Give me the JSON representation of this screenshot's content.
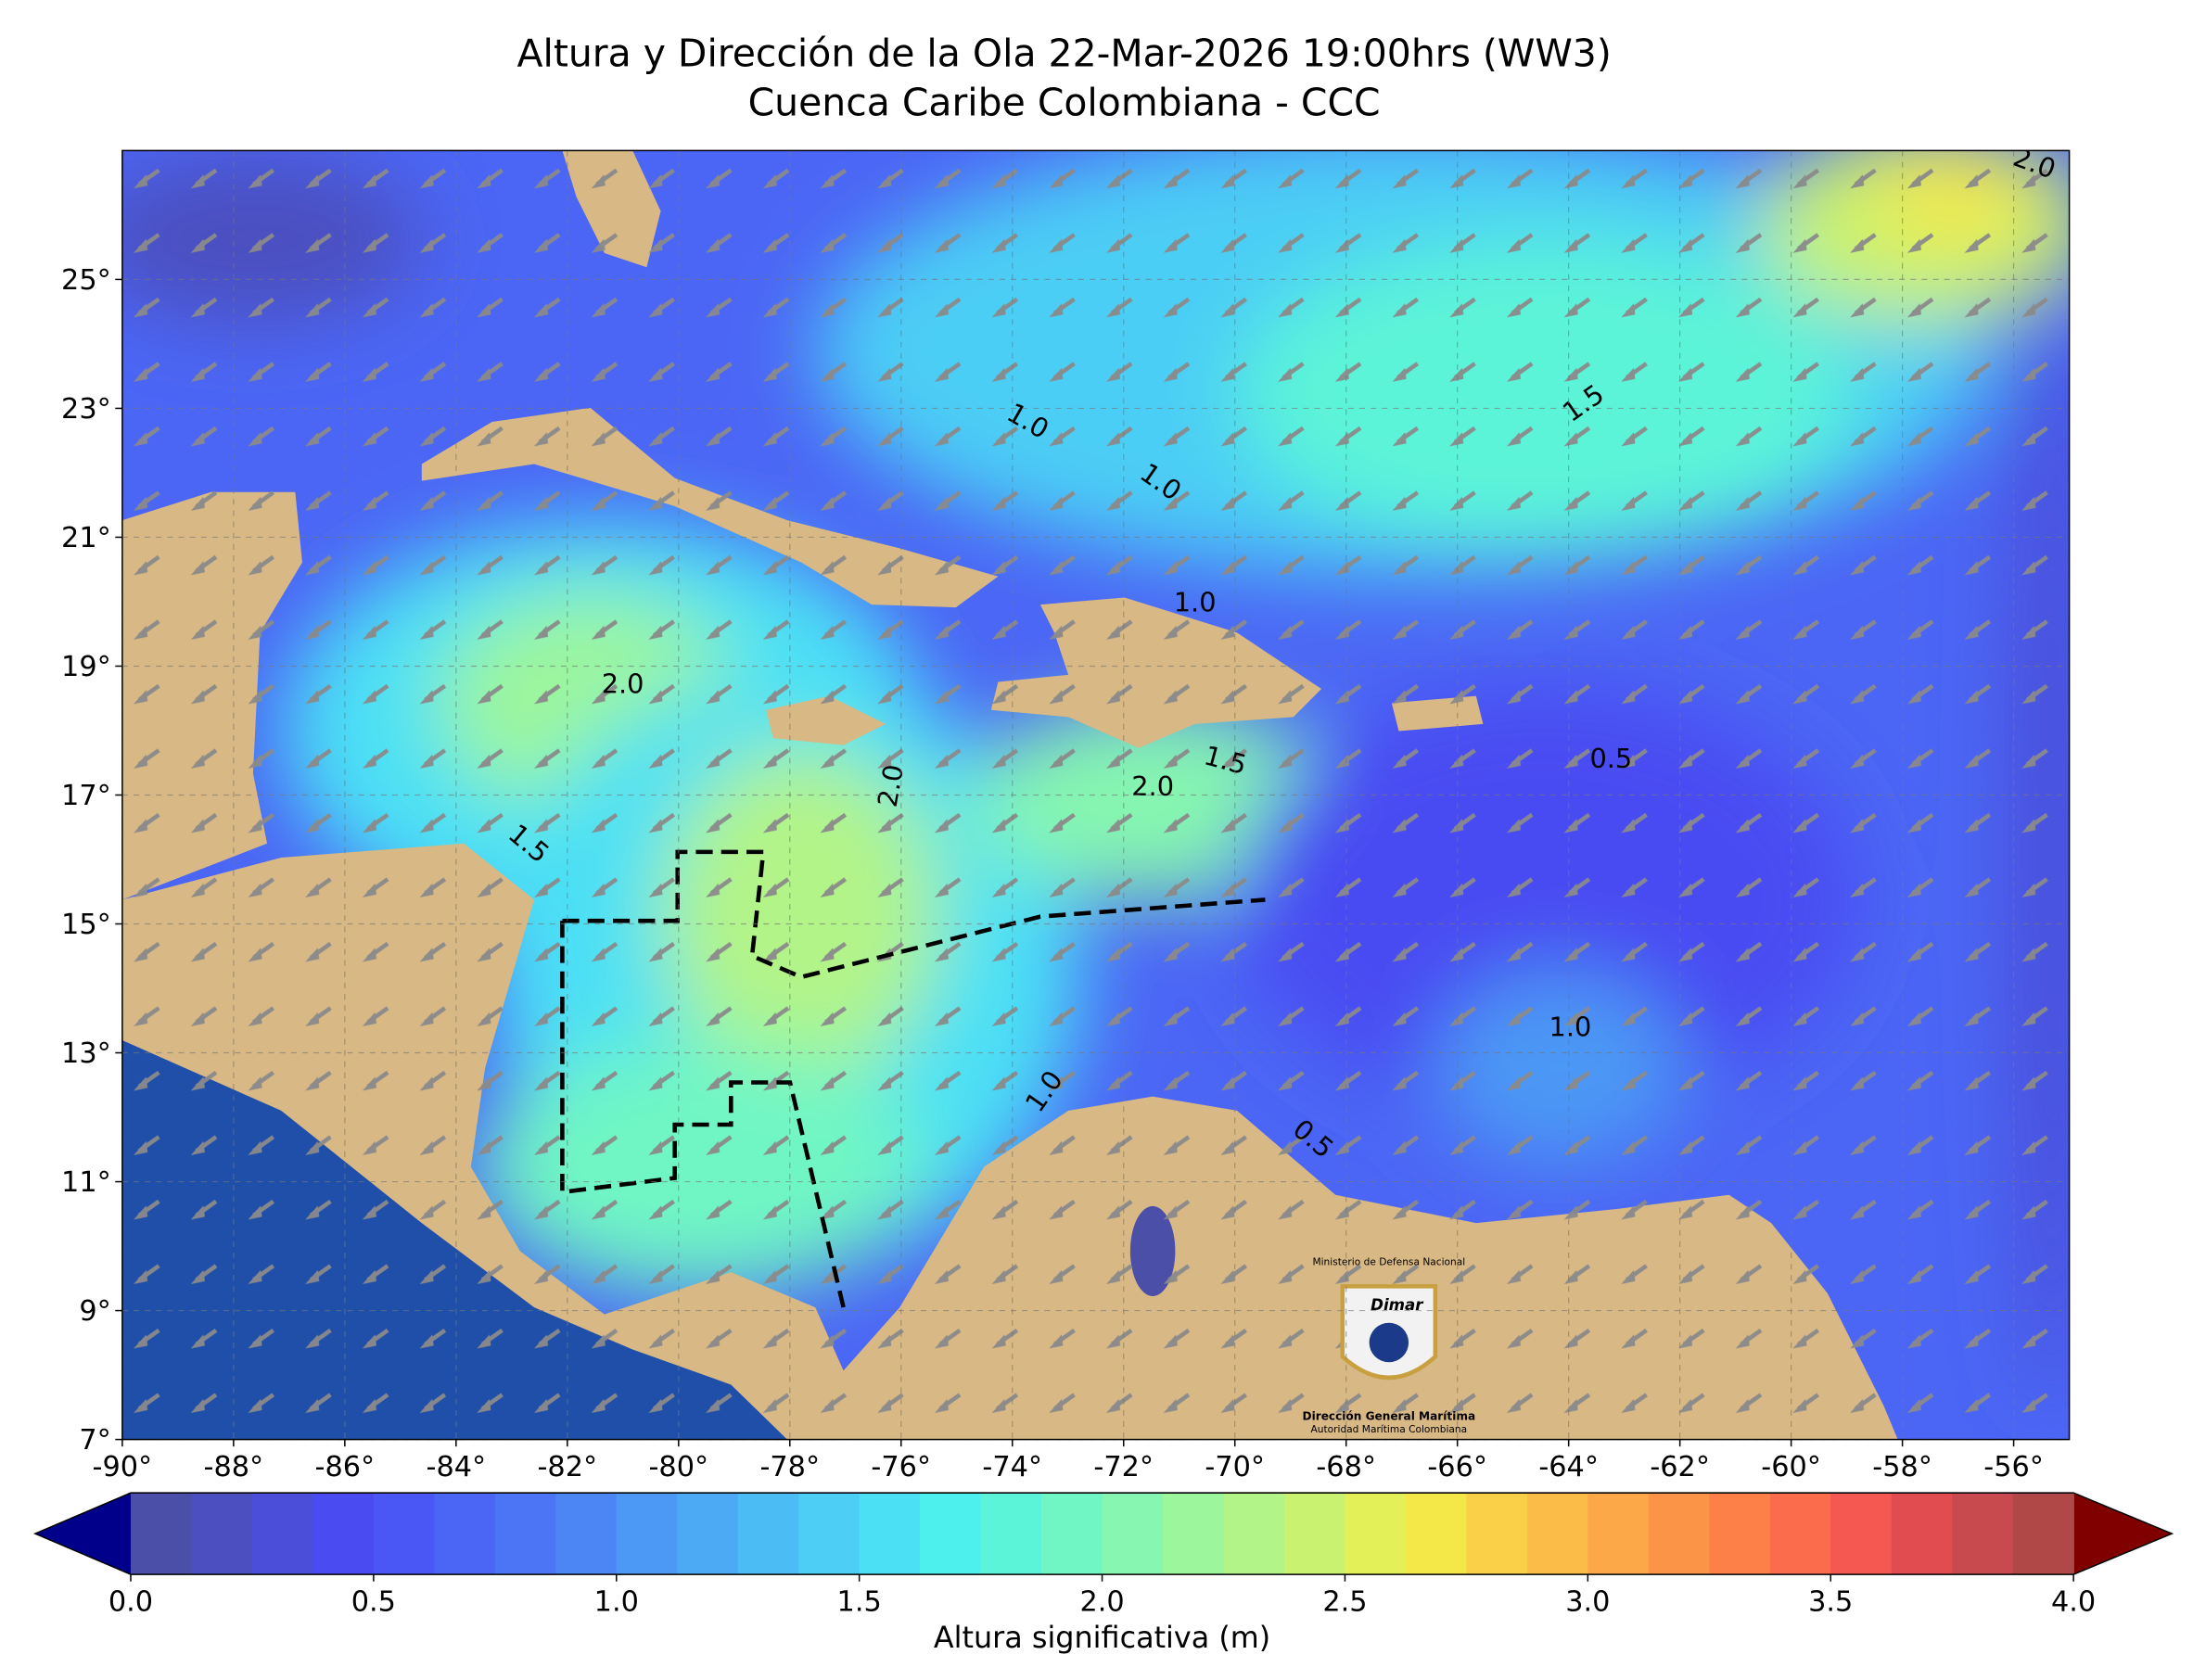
{
  "chart_data": {
    "type": "map",
    "title": "Altura y Dirección de la Ola 22-Mar-2026 19:00hrs (WW3)",
    "subtitle": "Cuenca Caribe Colombiana - CCC",
    "xlim": [
      -90,
      -55
    ],
    "ylim": [
      7,
      27
    ],
    "grid": true,
    "xticks": [
      {
        "value": -90,
        "label": "-90°"
      },
      {
        "value": -88,
        "label": "-88°"
      },
      {
        "value": -86,
        "label": "-86°"
      },
      {
        "value": -84,
        "label": "-84°"
      },
      {
        "value": -82,
        "label": "-82°"
      },
      {
        "value": -80,
        "label": "-80°"
      },
      {
        "value": -78,
        "label": "-78°"
      },
      {
        "value": -76,
        "label": "-76°"
      },
      {
        "value": -74,
        "label": "-74°"
      },
      {
        "value": -72,
        "label": "-72°"
      },
      {
        "value": -70,
        "label": "-70°"
      },
      {
        "value": -68,
        "label": "-68°"
      },
      {
        "value": -66,
        "label": "-66°"
      },
      {
        "value": -64,
        "label": "-64°"
      },
      {
        "value": -62,
        "label": "-62°"
      },
      {
        "value": -60,
        "label": "-60°"
      },
      {
        "value": -58,
        "label": "-58°"
      },
      {
        "value": -56,
        "label": "-56°"
      }
    ],
    "yticks": [
      {
        "value": 7,
        "label": "7°"
      },
      {
        "value": 9,
        "label": "9°"
      },
      {
        "value": 11,
        "label": "11°"
      },
      {
        "value": 13,
        "label": "13°"
      },
      {
        "value": 15,
        "label": "15°"
      },
      {
        "value": 17,
        "label": "17°"
      },
      {
        "value": 19,
        "label": "19°"
      },
      {
        "value": 21,
        "label": "21°"
      },
      {
        "value": 23,
        "label": "23°"
      },
      {
        "value": 25,
        "label": "25°"
      }
    ],
    "colorbar": {
      "label": "Altura significativa (m)",
      "clim": [
        0,
        4
      ],
      "ticks": [
        {
          "value": 0,
          "label": "0.0"
        },
        {
          "value": 0.5,
          "label": "0.5"
        },
        {
          "value": 1,
          "label": "1.0"
        },
        {
          "value": 1.5,
          "label": "1.5"
        },
        {
          "value": 2,
          "label": "2.0"
        },
        {
          "value": 2.5,
          "label": "2.5"
        },
        {
          "value": 3,
          "label": "3.0"
        },
        {
          "value": 3.5,
          "label": "3.5"
        },
        {
          "value": 4,
          "label": "4.0"
        }
      ],
      "colors": [
        "#4b4fa8",
        "#4b4fc0",
        "#4a4ed8",
        "#4a4cf2",
        "#4b57f5",
        "#4b66f5",
        "#4c75f5",
        "#4c86f5",
        "#4c98f5",
        "#4caaf5",
        "#4cbcf5",
        "#4ccef5",
        "#4ce0f5",
        "#4ef0ee",
        "#5cf4d8",
        "#70f6c4",
        "#86f6b0",
        "#9cf69c",
        "#b2f488",
        "#c8f270",
        "#e4f058",
        "#f4e848",
        "#fad048",
        "#fcbc48",
        "#fca848",
        "#fc9448",
        "#fc8048",
        "#fa6c4c",
        "#f45850",
        "#e04c50",
        "#c84a4e",
        "#b04848"
      ],
      "under_color": "#00008b",
      "over_color": "#800000"
    },
    "contour_labels": [
      "2.0",
      "2.0",
      "2.0",
      "1.5",
      "1.5",
      "1.5",
      "1.0",
      "1.0",
      "1.0",
      "1.0",
      "1.0",
      "0.5",
      "0.5",
      "2.0"
    ],
    "logo": {
      "ministry": "Ministerio de Defensa Nacional",
      "brand": "Dimar",
      "name": "Dirección General Marítima",
      "tagline": "Autoridad Marítima Colombiana"
    }
  }
}
